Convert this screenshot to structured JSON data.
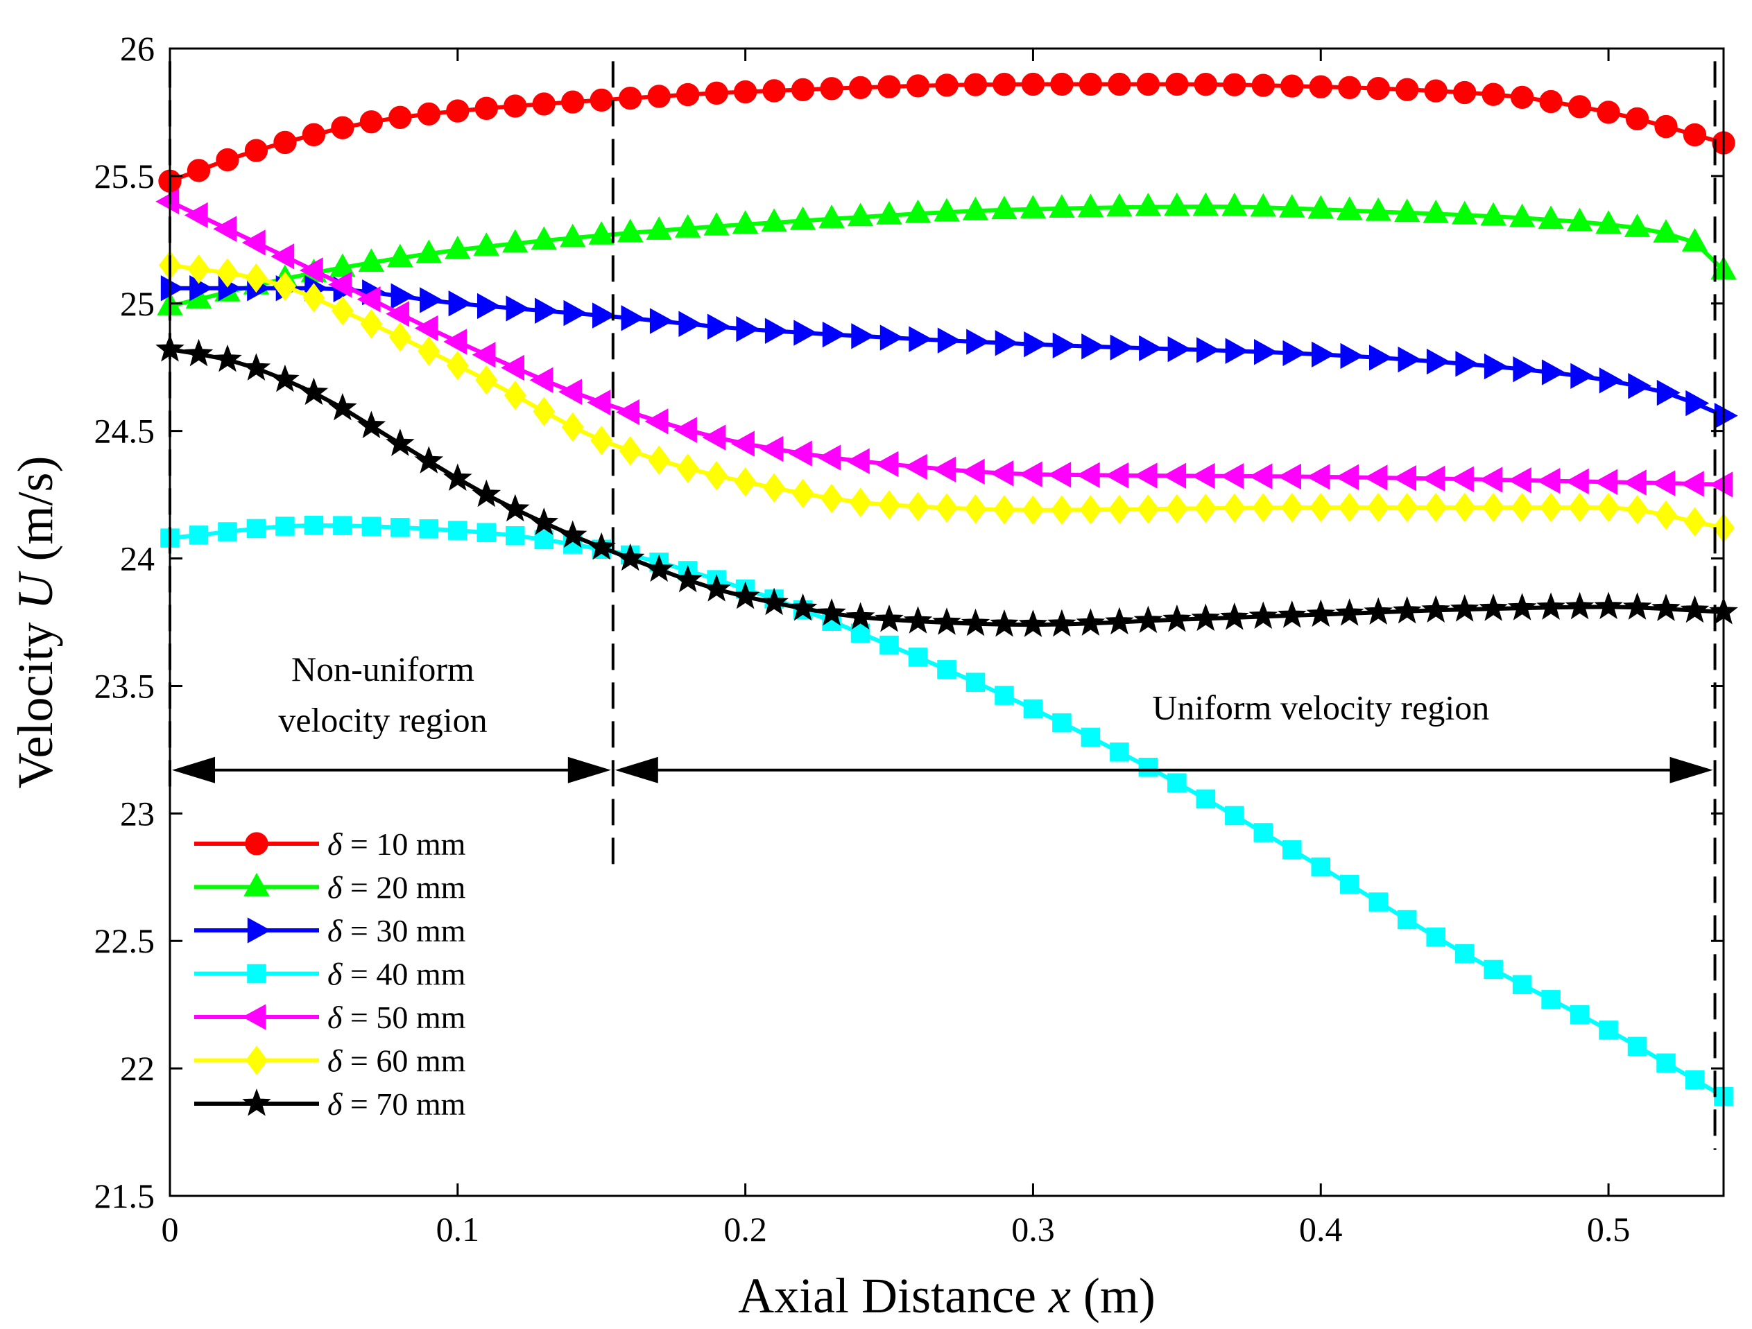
{
  "chart_data": {
    "type": "line",
    "title": "",
    "xlabel": "Axial Distance x (m)",
    "xlabel_parts": {
      "before": "Axial Distance ",
      "var": "x",
      "after": " (m)"
    },
    "ylabel": "Velocity U (m/s)",
    "ylabel_parts": {
      "before": "Velocity ",
      "var": "U",
      "after": " (m/s)"
    },
    "xlim": [
      0,
      0.54
    ],
    "ylim": [
      21.5,
      26
    ],
    "xticks": [
      0,
      0.1,
      0.2,
      0.3,
      0.4,
      0.5
    ],
    "xtick_labels": [
      "0",
      "0.1",
      "0.2",
      "0.3",
      "0.4",
      "0.5"
    ],
    "yticks": [
      21.5,
      22,
      22.5,
      23,
      23.5,
      24,
      24.5,
      25,
      25.5,
      26
    ],
    "ytick_labels": [
      "21.5",
      "22",
      "22.5",
      "23",
      "23.5",
      "24",
      "24.5",
      "25",
      "25.5",
      "26"
    ],
    "grid": false,
    "legend_position": "bottom-left",
    "legend_symbol": "δ",
    "n_points": 55,
    "series": [
      {
        "name": "δ = 10 mm",
        "legend_rest": " = 10 mm",
        "color": "#ff0000",
        "marker": "circle",
        "knots_x": [
          0,
          0.03,
          0.08,
          0.153,
          0.2,
          0.3,
          0.35,
          0.4,
          0.46,
          0.5,
          0.54
        ],
        "knots_y": [
          25.48,
          25.6,
          25.73,
          25.8,
          25.83,
          25.86,
          25.86,
          25.85,
          25.82,
          25.75,
          25.63
        ]
      },
      {
        "name": "δ = 20 mm",
        "legend_rest": " = 20 mm",
        "color": "#00ff00",
        "marker": "triangle-up",
        "knots_x": [
          0,
          0.05,
          0.1,
          0.153,
          0.2,
          0.3,
          0.36,
          0.42,
          0.5,
          0.53,
          0.54
        ],
        "knots_y": [
          24.99,
          25.12,
          25.21,
          25.27,
          25.31,
          25.37,
          25.38,
          25.36,
          25.31,
          25.24,
          25.13
        ]
      },
      {
        "name": "δ = 30 mm",
        "legend_rest": " = 30 mm",
        "color": "#0000ff",
        "marker": "triangle-right",
        "knots_x": [
          0,
          0.05,
          0.1,
          0.153,
          0.2,
          0.3,
          0.4,
          0.48,
          0.52,
          0.54
        ],
        "knots_y": [
          25.06,
          25.06,
          25.0,
          24.95,
          24.9,
          24.84,
          24.8,
          24.73,
          24.65,
          24.56
        ]
      },
      {
        "name": "δ = 40 mm",
        "legend_rest": " = 40 mm",
        "color": "#00ffff",
        "marker": "square",
        "knots_x": [
          0,
          0.05,
          0.1,
          0.153,
          0.2,
          0.25,
          0.3,
          0.35,
          0.4,
          0.45,
          0.5,
          0.54
        ],
        "knots_y": [
          24.08,
          24.13,
          24.11,
          24.03,
          23.88,
          23.66,
          23.41,
          23.12,
          22.79,
          22.45,
          22.15,
          21.89
        ]
      },
      {
        "name": "δ = 50 mm",
        "legend_rest": " = 50 mm",
        "color": "#ff00ff",
        "marker": "triangle-left",
        "knots_x": [
          0,
          0.05,
          0.1,
          0.153,
          0.2,
          0.25,
          0.3,
          0.4,
          0.5,
          0.54
        ],
        "knots_y": [
          25.4,
          25.13,
          24.85,
          24.6,
          24.45,
          24.37,
          24.33,
          24.32,
          24.3,
          24.29
        ]
      },
      {
        "name": "δ = 60 mm",
        "legend_rest": " = 60 mm",
        "color": "#ffff00",
        "marker": "diamond",
        "knots_x": [
          0,
          0.03,
          0.07,
          0.11,
          0.153,
          0.2,
          0.25,
          0.3,
          0.4,
          0.5,
          0.54
        ],
        "knots_y": [
          25.15,
          25.1,
          24.92,
          24.7,
          24.45,
          24.3,
          24.21,
          24.19,
          24.2,
          24.2,
          24.12
        ]
      },
      {
        "name": "δ = 70 mm",
        "legend_rest": " = 70 mm",
        "color": "#000000",
        "marker": "star",
        "knots_x": [
          0,
          0.02,
          0.05,
          0.08,
          0.11,
          0.14,
          0.153,
          0.2,
          0.25,
          0.3,
          0.35,
          0.4,
          0.45,
          0.5,
          0.54
        ],
        "knots_y": [
          24.82,
          24.78,
          24.65,
          24.45,
          24.25,
          24.09,
          24.03,
          23.85,
          23.76,
          23.74,
          23.76,
          23.78,
          23.8,
          23.81,
          23.79
        ]
      }
    ],
    "boundaries_x": [
      0,
      0.154,
      0.537
    ],
    "annotations": [
      {
        "id": "nonuniform-line1",
        "text": "Non-uniform",
        "x": 0.074,
        "y": 23.52
      },
      {
        "id": "nonuniform-line2",
        "text": "velocity region",
        "x": 0.074,
        "y": 23.32
      },
      {
        "id": "uniform",
        "text": "Uniform velocity region",
        "x": 0.4,
        "y": 23.37
      }
    ],
    "arrows": [
      {
        "id": "nonuniform-arrow",
        "x1": 0,
        "x2": 0.154,
        "y": 23.17
      },
      {
        "id": "uniform-arrow",
        "x1": 0.154,
        "x2": 0.537,
        "y": 23.17
      }
    ]
  }
}
